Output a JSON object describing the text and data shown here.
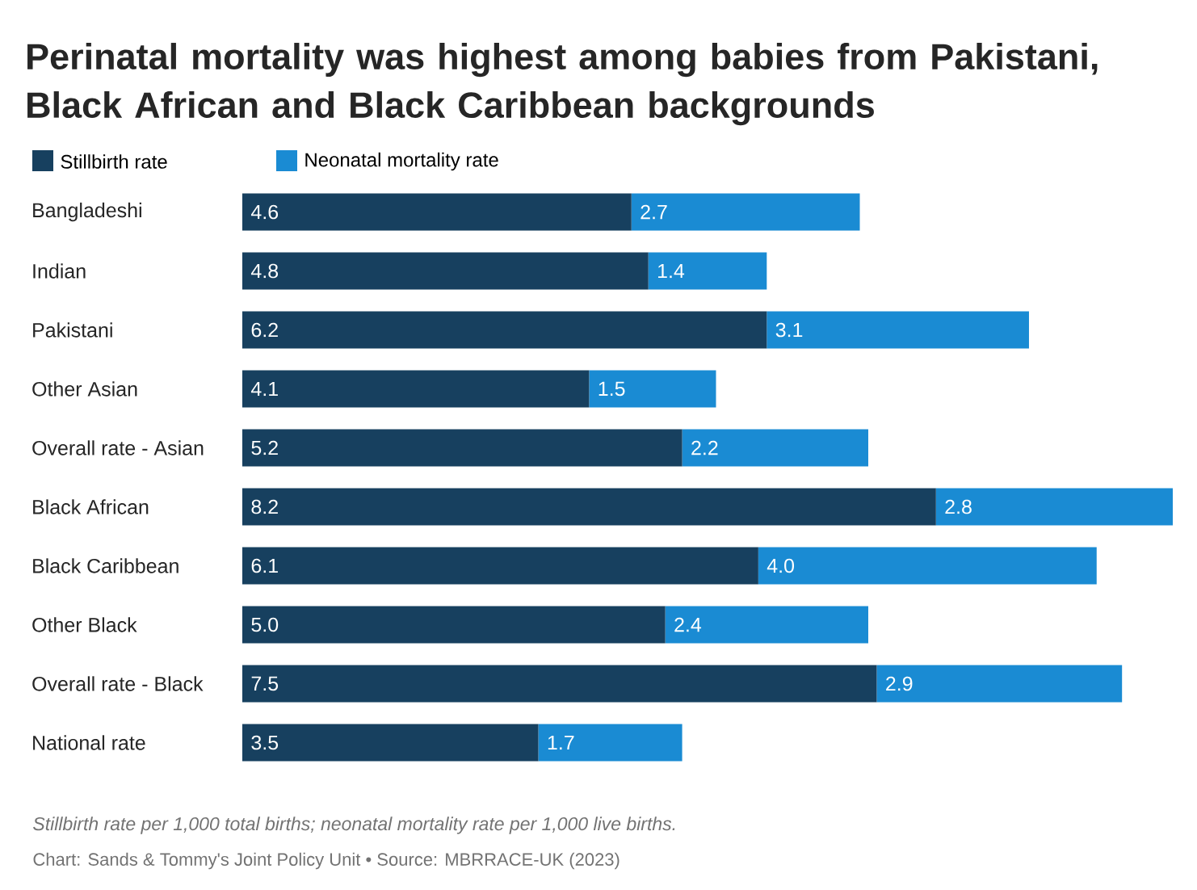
{
  "chart_data": {
    "type": "bar",
    "orientation": "horizontal",
    "stacked": true,
    "title": "Perinatal mortality was highest among babies from Pakistani, Black African and Black Caribbean backgrounds",
    "categories": [
      "Bangladeshi",
      "Indian",
      "Pakistani",
      "Other Asian",
      "Overall rate - Asian",
      "Black African",
      "Black Caribbean",
      "Other Black",
      "Overall rate - Black",
      "National rate"
    ],
    "series": [
      {
        "name": "Stillbirth rate",
        "color": "#17405f",
        "values": [
          4.6,
          4.8,
          6.2,
          4.1,
          5.2,
          8.2,
          6.1,
          5.0,
          7.5,
          3.5
        ],
        "value_labels": [
          "4.6",
          "4.8",
          "6.2",
          "4.1",
          "5.2",
          "8.2",
          "6.1",
          "5.0",
          "7.5",
          "3.5"
        ]
      },
      {
        "name": "Neonatal mortality rate",
        "color": "#1a8bd3",
        "values": [
          2.7,
          1.4,
          3.1,
          1.5,
          2.2,
          2.8,
          4.0,
          2.4,
          2.9,
          1.7
        ],
        "value_labels": [
          "2.7",
          "1.4",
          "3.1",
          "1.5",
          "2.2",
          "2.8",
          "4.0",
          "2.4",
          "2.9",
          "1.7"
        ]
      }
    ],
    "legend": "top left",
    "annotations": [
      "Stillbirth rate per 1,000 total births; neonatal mortality rate per 1,000 live births.",
      "Chart: Sands & Tommy's Joint Policy Unit • Source: MBRRACE-UK (2023)"
    ]
  }
}
